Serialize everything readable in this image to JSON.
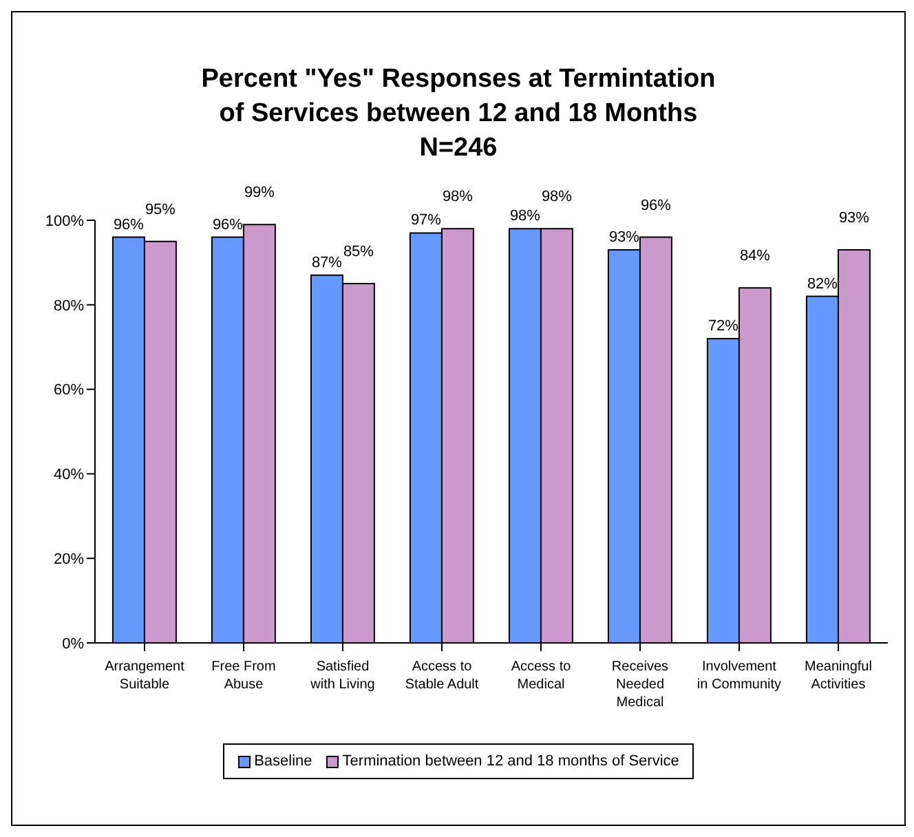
{
  "chart_data": {
    "type": "bar",
    "title": "Percent \"Yes\" Responses at Termintation of Services between 12 and 18 Months",
    "subtitle": "N=246",
    "categories": [
      "Arrangement Suitable",
      "Free From Abuse",
      "Satisfied with Living",
      "Access to Stable Adult",
      "Access to Medical",
      "Receives Needed Medical",
      "Involvement in Community",
      "Meaningful Activities"
    ],
    "series": [
      {
        "name": "Baseline",
        "color": "#6699ff",
        "values": [
          96,
          96,
          87,
          97,
          98,
          93,
          72,
          82
        ],
        "value_labels": [
          "96%",
          "96%",
          "87%",
          "97%",
          "98%",
          "93%",
          "72%",
          "82%"
        ]
      },
      {
        "name": "Termination between 12 and 18 months of Service",
        "color": "#cc99cc",
        "values": [
          95,
          99,
          85,
          98,
          98,
          96,
          84,
          93
        ],
        "value_labels": [
          "95%",
          "99%",
          "85%",
          "98%",
          "98%",
          "96%",
          "84%",
          "93%"
        ]
      }
    ],
    "ylim": [
      0,
      100
    ],
    "yticks": [
      {
        "value": 0,
        "label": "0%"
      },
      {
        "value": 20,
        "label": "20%"
      },
      {
        "value": 40,
        "label": "40%"
      },
      {
        "value": 60,
        "label": "60%"
      },
      {
        "value": 80,
        "label": "80%"
      },
      {
        "value": 100,
        "label": "100%"
      }
    ],
    "grid": false,
    "legend": "bottom"
  }
}
